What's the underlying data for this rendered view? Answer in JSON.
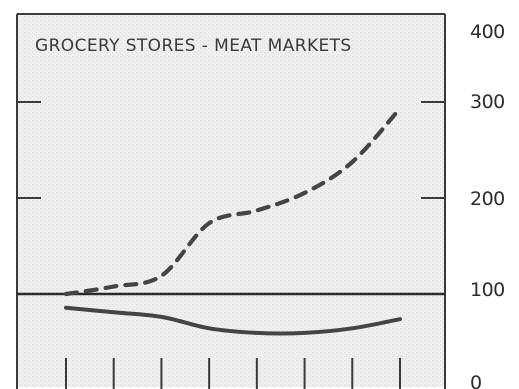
{
  "chart_data": {
    "type": "line",
    "title": "GROCERY STORES - MEAT MARKETS",
    "xlabel": "",
    "ylabel": "",
    "y_tick_labels": [
      "400",
      "300",
      "200",
      "100",
      "0"
    ],
    "ylim": [
      0,
      400
    ],
    "y_scale": "log",
    "reference_line_y": 100,
    "x_count": 8,
    "grid": false,
    "series": [
      {
        "style": "dashed",
        "color": "#444444",
        "x": [
          0,
          1,
          2,
          3,
          4,
          5,
          6,
          7
        ],
        "values": [
          100,
          104,
          110,
          145,
          155,
          170,
          200,
          265
        ]
      },
      {
        "style": "solid",
        "color": "#444444",
        "x": [
          0,
          1,
          2,
          3,
          4,
          5,
          6,
          7
        ],
        "values": [
          94,
          92,
          90,
          85,
          83,
          83,
          85,
          89
        ]
      }
    ]
  },
  "colors": {
    "ink": "#333333",
    "paper": "#f1f1f1",
    "background": "#ffffff"
  }
}
